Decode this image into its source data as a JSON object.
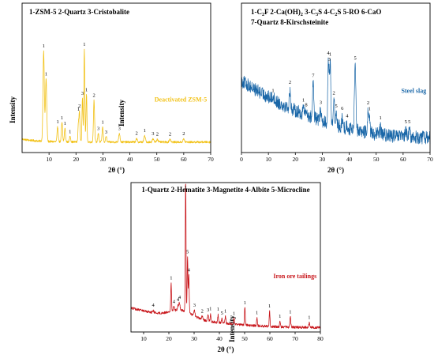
{
  "chart_data": [
    {
      "type": "line",
      "panel": "top-left",
      "legend": "1-ZSM-5   2-Quartz   3-Cristobalite",
      "series": [
        {
          "name": "Deactivated ZSM-5",
          "color": "#F2C218"
        }
      ],
      "xlabel": "2θ (°)",
      "ylabel": "Intensity",
      "xlim": [
        0,
        70
      ],
      "xticks": [
        10,
        20,
        30,
        40,
        50,
        60,
        70
      ],
      "yticks_shown": false,
      "grid": false,
      "baseline": 0.07,
      "noise": 0.007,
      "peaks": [
        {
          "x": 8.0,
          "h": 0.6,
          "w": 0.35,
          "label": "1"
        },
        {
          "x": 8.9,
          "h": 0.42,
          "w": 0.35,
          "label": "1"
        },
        {
          "x": 13.2,
          "h": 0.1,
          "w": 0.3,
          "label": "1"
        },
        {
          "x": 14.8,
          "h": 0.13,
          "w": 0.3,
          "label": "1"
        },
        {
          "x": 15.9,
          "h": 0.09,
          "w": 0.3,
          "label": "1"
        },
        {
          "x": 17.8,
          "h": 0.04,
          "w": 0.3,
          "label": "1"
        },
        {
          "x": 20.9,
          "h": 0.12,
          "w": 0.25,
          "label": "1"
        },
        {
          "x": 21.3,
          "h": 0.2,
          "w": 0.25,
          "label": "2"
        },
        {
          "x": 22.4,
          "h": 0.3,
          "w": 0.25,
          "label": "3"
        },
        {
          "x": 23.1,
          "h": 0.62,
          "w": 0.25,
          "label": "1"
        },
        {
          "x": 23.9,
          "h": 0.32,
          "w": 0.25,
          "label": "1"
        },
        {
          "x": 26.7,
          "h": 0.28,
          "w": 0.3,
          "label": "2"
        },
        {
          "x": 28.3,
          "h": 0.06,
          "w": 0.3,
          "label": "3"
        },
        {
          "x": 29.9,
          "h": 0.1,
          "w": 0.3,
          "label": "1"
        },
        {
          "x": 31.2,
          "h": 0.04,
          "w": 0.3,
          "label": "3"
        },
        {
          "x": 36.1,
          "h": 0.06,
          "w": 0.35,
          "label": "3"
        },
        {
          "x": 42.5,
          "h": 0.02,
          "w": 0.4,
          "label": "2"
        },
        {
          "x": 45.5,
          "h": 0.04,
          "w": 0.4,
          "label": "1"
        },
        {
          "x": 48.6,
          "h": 0.02,
          "w": 0.4,
          "label": "3"
        },
        {
          "x": 50.2,
          "h": 0.02,
          "w": 0.4,
          "label": "2"
        },
        {
          "x": 54.9,
          "h": 0.02,
          "w": 0.4,
          "label": "2"
        },
        {
          "x": 60.0,
          "h": 0.02,
          "w": 0.4,
          "label": "2"
        }
      ]
    },
    {
      "type": "line",
      "panel": "top-right",
      "legend_line1": [
        "1-C",
        "2",
        "F  2-Ca(OH)",
        "2",
        "  3-C",
        "3",
        "S  4-C",
        "2",
        "S  5-RO  6-CaO"
      ],
      "legend_line2": "7-Quartz  8-Kirschsteinite",
      "series": [
        {
          "name": "Steel slag",
          "color": "#1A67A8"
        }
      ],
      "xlabel": "2θ (°)",
      "ylabel": "Intensity",
      "xlim": [
        0,
        70
      ],
      "xticks": [
        0,
        10,
        20,
        30,
        40,
        50,
        60,
        70
      ],
      "yticks_shown": false,
      "grid": false,
      "baseline_start": 0.48,
      "baseline_end": 0.1,
      "noise": 0.045,
      "peaks": [
        {
          "x": 11.7,
          "h": 0.03,
          "w": 0.4,
          "label": "1"
        },
        {
          "x": 18.0,
          "h": 0.12,
          "w": 0.3,
          "label": "2"
        },
        {
          "x": 23.0,
          "h": 0.05,
          "w": 0.3,
          "label": "1"
        },
        {
          "x": 24.0,
          "h": 0.03,
          "w": 0.3,
          "label": "8"
        },
        {
          "x": 26.6,
          "h": 0.25,
          "w": 0.3,
          "label": "7"
        },
        {
          "x": 29.4,
          "h": 0.08,
          "w": 0.3,
          "label": "3"
        },
        {
          "x": 32.2,
          "h": 0.38,
          "w": 0.25,
          "label": "4"
        },
        {
          "x": 32.6,
          "h": 0.3,
          "w": 0.25,
          "label": "3"
        },
        {
          "x": 33.0,
          "h": 0.4,
          "w": 0.25,
          "label": "1"
        },
        {
          "x": 34.3,
          "h": 0.18,
          "w": 0.3,
          "label": "2"
        },
        {
          "x": 35.2,
          "h": 0.08,
          "w": 0.3,
          "label": "5"
        },
        {
          "x": 37.4,
          "h": 0.05,
          "w": 0.3,
          "label": "6"
        },
        {
          "x": 39.2,
          "h": 0.02,
          "w": 0.3,
          "label": "4"
        },
        {
          "x": 42.2,
          "h": 0.48,
          "w": 0.35,
          "label": "5"
        },
        {
          "x": 47.0,
          "h": 0.14,
          "w": 0.3,
          "label": "2"
        },
        {
          "x": 47.5,
          "h": 0.1,
          "w": 0.3,
          "label": "1"
        },
        {
          "x": 51.6,
          "h": 0.05,
          "w": 0.3,
          "label": "1"
        },
        {
          "x": 61.0,
          "h": 0.05,
          "w": 0.3,
          "label": "5"
        },
        {
          "x": 62.3,
          "h": 0.05,
          "w": 0.3,
          "label": "5"
        }
      ]
    },
    {
      "type": "line",
      "panel": "bottom",
      "legend": "1-Quartz 2-Hematite 3-Magnetite 4-Albite 5-Microcline",
      "series": [
        {
          "name": "Iron ore tailings",
          "color": "#C8171C"
        }
      ],
      "xlabel": "2θ (°)",
      "ylabel": "Intensity",
      "xlim": [
        5,
        80
      ],
      "xticks": [
        10,
        20,
        30,
        40,
        50,
        60,
        70,
        80
      ],
      "yticks_shown": false,
      "grid": false,
      "baseline_start": 0.16,
      "baseline_end": 0.03,
      "noise": 0.008,
      "peaks": [
        {
          "x": 13.8,
          "h": 0.01,
          "w": 0.4,
          "label": "4"
        },
        {
          "x": 20.9,
          "h": 0.19,
          "w": 0.22,
          "label": "1"
        },
        {
          "x": 22.0,
          "h": 0.03,
          "w": 0.3,
          "label": "4"
        },
        {
          "x": 23.6,
          "h": 0.03,
          "w": 0.3,
          "label": "4"
        },
        {
          "x": 24.2,
          "h": 0.05,
          "w": 0.3,
          "label": "4"
        },
        {
          "x": 26.65,
          "h": 0.94,
          "w": 0.2,
          "label": "1"
        },
        {
          "x": 27.4,
          "h": 0.37,
          "w": 0.22,
          "label": "5"
        },
        {
          "x": 27.9,
          "h": 0.25,
          "w": 0.22,
          "label": "4"
        },
        {
          "x": 30.1,
          "h": 0.04,
          "w": 0.3,
          "label": "3"
        },
        {
          "x": 33.2,
          "h": 0.02,
          "w": 0.3,
          "label": "2"
        },
        {
          "x": 35.5,
          "h": 0.04,
          "w": 0.3,
          "label": "3"
        },
        {
          "x": 36.5,
          "h": 0.05,
          "w": 0.22,
          "label": "1"
        },
        {
          "x": 39.5,
          "h": 0.05,
          "w": 0.22,
          "label": "1"
        },
        {
          "x": 41.0,
          "h": 0.03,
          "w": 0.22,
          "label": "5"
        },
        {
          "x": 42.4,
          "h": 0.05,
          "w": 0.22,
          "label": "1"
        },
        {
          "x": 45.8,
          "h": 0.04,
          "w": 0.22,
          "label": "1"
        },
        {
          "x": 50.1,
          "h": 0.12,
          "w": 0.22,
          "label": "1"
        },
        {
          "x": 54.9,
          "h": 0.05,
          "w": 0.22,
          "label": "1"
        },
        {
          "x": 59.9,
          "h": 0.1,
          "w": 0.22,
          "label": "1"
        },
        {
          "x": 64.0,
          "h": 0.04,
          "w": 0.22,
          "label": "1"
        },
        {
          "x": 68.1,
          "h": 0.07,
          "w": 0.25,
          "label": "1"
        },
        {
          "x": 75.6,
          "h": 0.03,
          "w": 0.25,
          "label": "1"
        }
      ]
    }
  ]
}
